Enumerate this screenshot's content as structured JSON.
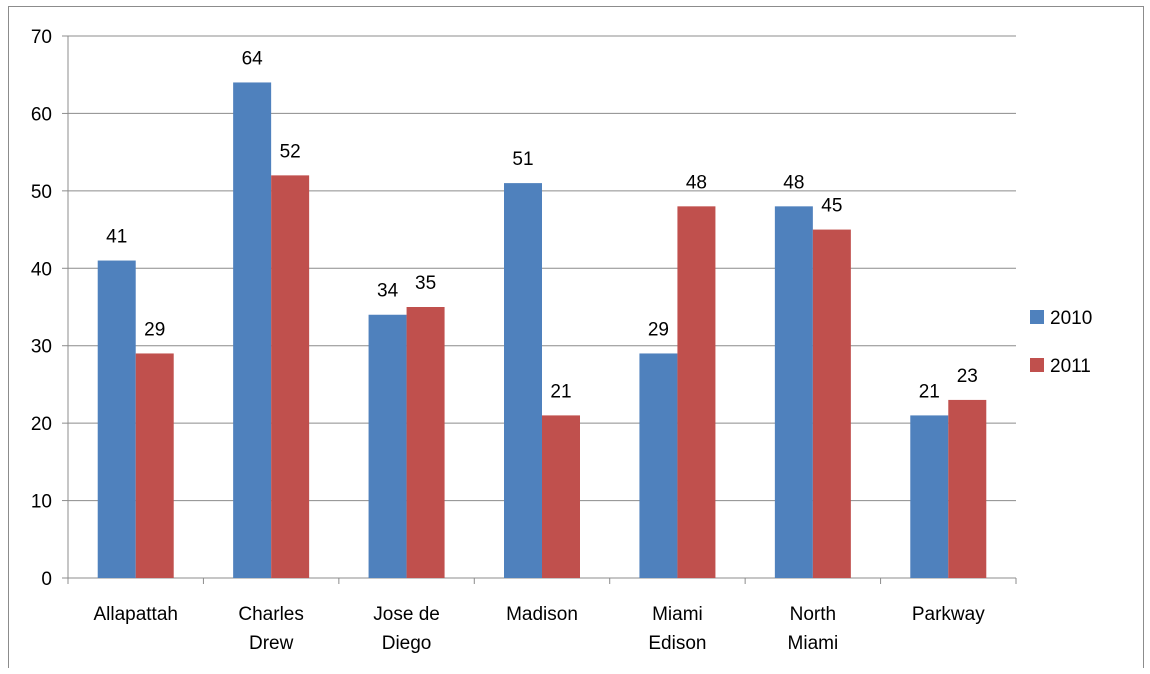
{
  "chart_data": {
    "type": "bar",
    "title": "",
    "xlabel": "",
    "ylabel": "",
    "categories": [
      [
        "Allapattah"
      ],
      [
        "Charles",
        "Drew"
      ],
      [
        "Jose de",
        "Diego"
      ],
      [
        "Madison"
      ],
      [
        "Miami",
        "Edison"
      ],
      [
        "North",
        "Miami"
      ],
      [
        "Parkway"
      ]
    ],
    "series": [
      {
        "name": "2010",
        "color": "#4f81bd",
        "values": [
          41,
          64,
          34,
          51,
          29,
          48,
          21
        ]
      },
      {
        "name": "2011",
        "color": "#c0504d",
        "values": [
          29,
          52,
          35,
          21,
          48,
          45,
          23
        ]
      }
    ],
    "ylim": [
      0,
      70
    ],
    "yticks": [
      0,
      10,
      20,
      30,
      40,
      50,
      60,
      70
    ],
    "grid": true,
    "legend_position": "right",
    "data_labels": true
  }
}
